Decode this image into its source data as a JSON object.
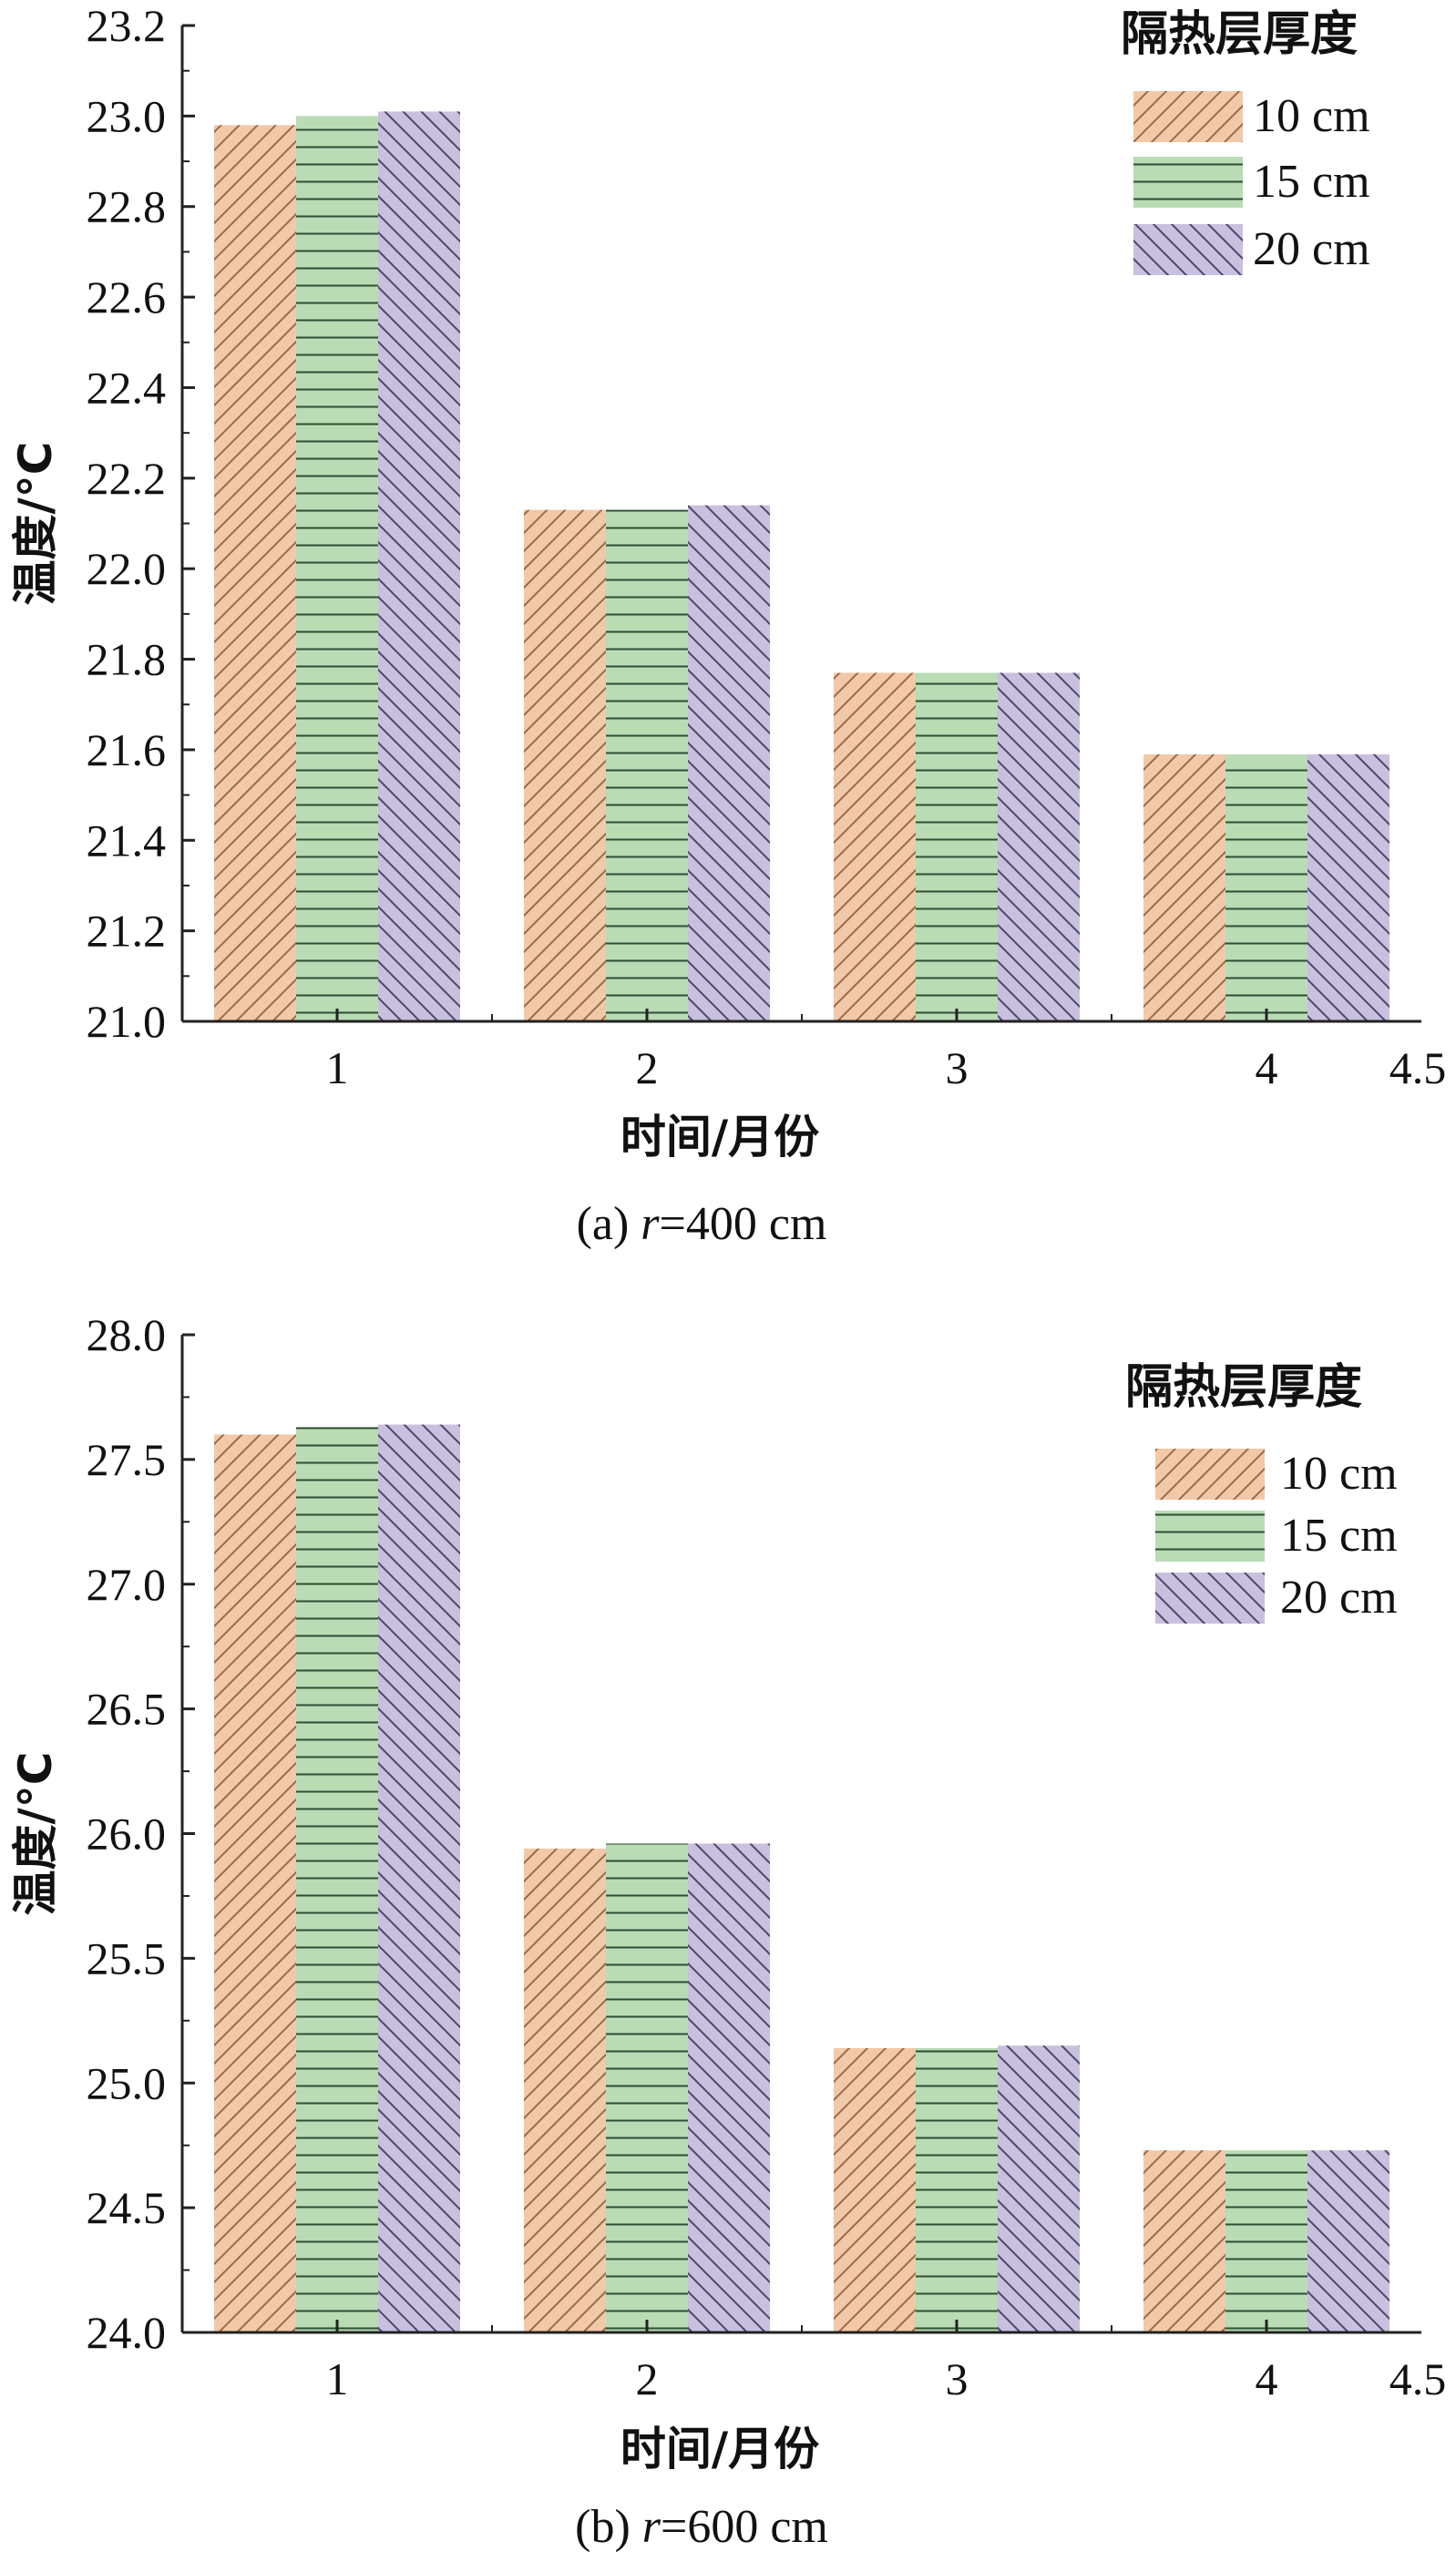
{
  "colors": {
    "axis": "#222222",
    "series": [
      "#f2c9a8",
      "#b9dcb4",
      "#c9c0dd"
    ],
    "hatch": [
      "#9a6a4a",
      "#2f4d33",
      "#4d4570"
    ]
  },
  "chart_data": [
    {
      "type": "bar",
      "caption_prefix": "(a) ",
      "caption_var": "r",
      "caption_rest": "=400 cm",
      "xlabel": "时间/月份",
      "ylabel": "温度/°C",
      "x": [
        1,
        2,
        3,
        4
      ],
      "x_ticks": [
        "1",
        "2",
        "3",
        "4",
        "4.5"
      ],
      "x_tick_values": [
        1,
        2,
        3,
        4,
        4.5
      ],
      "xlim": [
        0.5,
        4.5
      ],
      "ylim": [
        21.0,
        23.2
      ],
      "y_ticks": [
        "21.0",
        "21.2",
        "21.4",
        "21.6",
        "21.8",
        "22.0",
        "22.2",
        "22.4",
        "22.6",
        "22.8",
        "23.0",
        "23.2"
      ],
      "y_tick_values": [
        21.0,
        21.2,
        21.4,
        21.6,
        21.8,
        22.0,
        22.2,
        22.4,
        22.6,
        22.8,
        23.0,
        23.2
      ],
      "legend": {
        "title": "隔热层厚度",
        "placement": "top-right"
      },
      "series": [
        {
          "name": "10 cm",
          "hatch": "diagonal-right",
          "values": [
            22.98,
            22.13,
            21.77,
            21.59
          ]
        },
        {
          "name": "15 cm",
          "hatch": "horizontal",
          "values": [
            23.0,
            22.13,
            21.77,
            21.59
          ]
        },
        {
          "name": "20 cm",
          "hatch": "diagonal-left",
          "values": [
            23.01,
            22.14,
            21.77,
            21.59
          ]
        }
      ]
    },
    {
      "type": "bar",
      "caption_prefix": "(b) ",
      "caption_var": "r",
      "caption_rest": "=600 cm",
      "xlabel": "时间/月份",
      "ylabel": "温度/°C",
      "x": [
        1,
        2,
        3,
        4
      ],
      "x_ticks": [
        "1",
        "2",
        "3",
        "4",
        "4.5"
      ],
      "x_tick_values": [
        1,
        2,
        3,
        4,
        4.5
      ],
      "xlim": [
        0.5,
        4.5
      ],
      "ylim": [
        24.0,
        28.0
      ],
      "y_ticks": [
        "24.0",
        "24.5",
        "25.0",
        "25.5",
        "26.0",
        "26.5",
        "27.0",
        "27.5",
        "28.0"
      ],
      "y_tick_values": [
        24.0,
        24.5,
        25.0,
        25.5,
        26.0,
        26.5,
        27.0,
        27.5,
        28.0
      ],
      "legend": {
        "title": "隔热层厚度",
        "placement": "top-right"
      },
      "series": [
        {
          "name": "10 cm",
          "hatch": "diagonal-right",
          "values": [
            27.6,
            25.94,
            25.14,
            24.73
          ]
        },
        {
          "name": "15 cm",
          "hatch": "horizontal",
          "values": [
            27.63,
            25.96,
            25.14,
            24.73
          ]
        },
        {
          "name": "20 cm",
          "hatch": "diagonal-left",
          "values": [
            27.64,
            25.96,
            25.15,
            24.73
          ]
        }
      ]
    }
  ]
}
